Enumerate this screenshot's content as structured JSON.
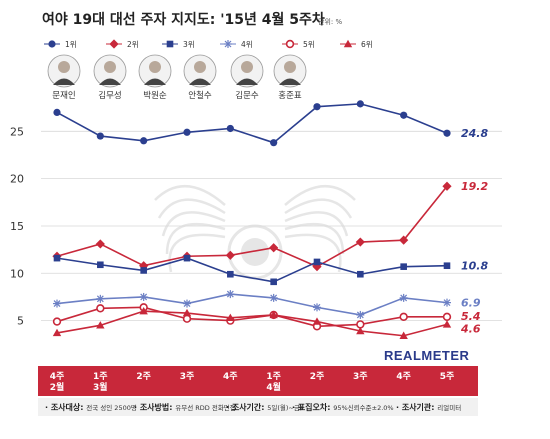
{
  "chart_data": {
    "type": "line",
    "title": "여야 19대 대선 주자 지지도: '15년 4월 5주차",
    "unit": "단위: %",
    "categories": [
      [
        "4주",
        "2월"
      ],
      [
        "1주",
        "3월"
      ],
      [
        "2주"
      ],
      [
        "3주"
      ],
      [
        "4주"
      ],
      [
        "1주",
        "4월"
      ],
      [
        "2주"
      ],
      [
        "3주"
      ],
      [
        "4주"
      ],
      [
        "5주"
      ]
    ],
    "yticks": [
      5,
      10,
      15,
      20,
      25
    ],
    "ylim": [
      2,
      30
    ],
    "grid": "horizontal",
    "legend": "top-left",
    "series": [
      {
        "rank": "1위",
        "name": "문재인",
        "color": "#2b3f8f",
        "marker": "circle-filled",
        "values": [
          27.0,
          24.5,
          24.0,
          24.9,
          25.3,
          23.8,
          27.6,
          27.9,
          26.7,
          24.8
        ],
        "end_label": "24.8"
      },
      {
        "rank": "2위",
        "name": "김무성",
        "color": "#c8283a",
        "marker": "diamond-filled",
        "values": [
          11.8,
          13.1,
          10.8,
          11.8,
          11.9,
          12.7,
          10.7,
          13.3,
          13.5,
          19.2
        ],
        "end_label": "19.2"
      },
      {
        "rank": "3위",
        "name": "박원순",
        "color": "#2b3f8f",
        "marker": "square-filled",
        "values": [
          11.6,
          10.9,
          10.3,
          11.6,
          9.9,
          9.1,
          11.2,
          9.9,
          10.7,
          10.8
        ],
        "end_label": "10.8"
      },
      {
        "rank": "4위",
        "name": "안철수",
        "color": "#6b7fc4",
        "marker": "star",
        "values": [
          6.8,
          7.3,
          7.5,
          6.8,
          7.8,
          7.4,
          6.4,
          5.6,
          7.4,
          6.9
        ],
        "end_label": "6.9"
      },
      {
        "rank": "5위",
        "name": "김문수",
        "color": "#c8283a",
        "marker": "circle-open",
        "values": [
          4.9,
          6.3,
          6.4,
          5.2,
          5.0,
          5.6,
          4.4,
          4.6,
          5.4,
          5.4
        ],
        "end_label": "5.4"
      },
      {
        "rank": "6위",
        "name": "홍준표",
        "color": "#c8283a",
        "marker": "triangle-filled",
        "values": [
          3.7,
          4.5,
          6.0,
          5.8,
          5.3,
          5.6,
          4.9,
          3.9,
          3.4,
          4.6
        ],
        "end_label": "4.6"
      }
    ],
    "footer": [
      {
        "label": "조사대상",
        "text": "전국 성인 2500명"
      },
      {
        "label": "조사방법",
        "text": "유무선 RDD 전화면접"
      },
      {
        "label": "조사기간",
        "text": "5일(월)~금)"
      },
      {
        "label": "표집오차",
        "text": "95%신뢰수준±2.0%"
      },
      {
        "label": "조사기관",
        "text": "리얼미터"
      }
    ],
    "brand": "REALMETER",
    "colors": {
      "accent_red": "#c8283a",
      "grid": "#d8d8d8",
      "watermark": "#e6e6e6"
    }
  }
}
